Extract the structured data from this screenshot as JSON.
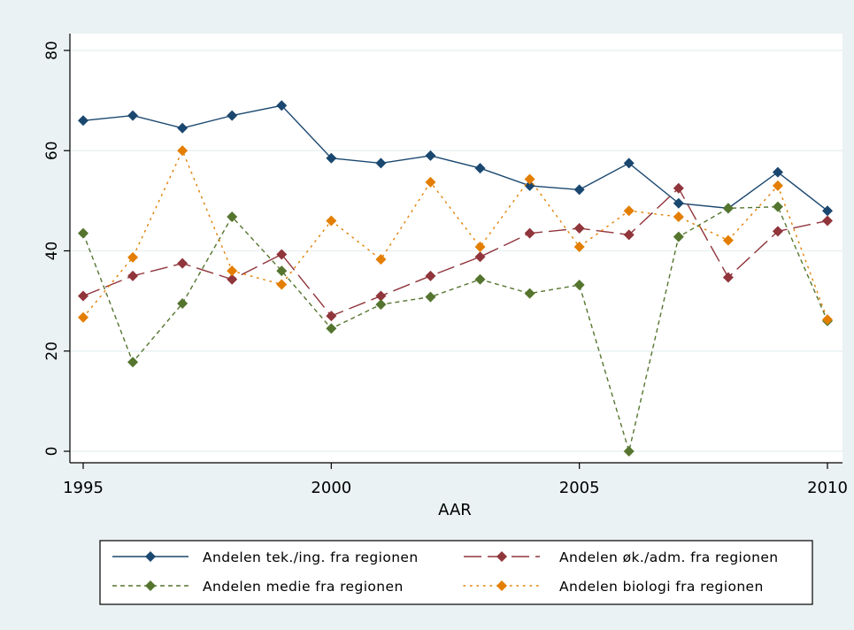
{
  "chart_data": {
    "type": "line",
    "xlabel": "AAR",
    "ylabel": "",
    "xlim": [
      1995,
      2010
    ],
    "ylim": [
      0,
      80
    ],
    "x_ticks": [
      1995,
      2000,
      2005,
      2010
    ],
    "y_ticks": [
      0,
      20,
      40,
      60,
      80
    ],
    "grid": true,
    "legend_position": "bottom",
    "x": [
      1995,
      1996,
      1997,
      1998,
      1999,
      2000,
      2001,
      2002,
      2003,
      2004,
      2005,
      2006,
      2007,
      2008,
      2009,
      2010
    ],
    "series": [
      {
        "name": "Andelen tek./ing. fra regionen",
        "color": "#1a476f",
        "line_style": "solid",
        "values": [
          66,
          67,
          64.5,
          67,
          69,
          58.5,
          57.5,
          59,
          56.5,
          53,
          52.2,
          57.5,
          49.5,
          48.5,
          55.7,
          48
        ]
      },
      {
        "name": "Andelen øk./adm. fra regionen",
        "color": "#90353b",
        "line_style": "longdash",
        "values": [
          31,
          35,
          37.5,
          34.3,
          39.3,
          27,
          31,
          35,
          38.8,
          43.5,
          44.5,
          43.2,
          52.5,
          34.7,
          43.9,
          46
        ]
      },
      {
        "name": "Andelen medie fra regionen",
        "color": "#55752f",
        "line_style": "dash",
        "values": [
          43.5,
          17.8,
          29.5,
          46.8,
          36,
          24.5,
          29.3,
          30.8,
          34.3,
          31.5,
          33.2,
          0,
          42.8,
          48.5,
          48.8,
          26
        ]
      },
      {
        "name": "Andelen biologi fra regionen",
        "color": "#e37e00",
        "line_style": "dot",
        "values": [
          26.7,
          38.7,
          60,
          36,
          33.3,
          46,
          38.3,
          53.7,
          40.8,
          54.3,
          40.8,
          48,
          46.8,
          42.1,
          53,
          26.3
        ]
      }
    ]
  },
  "legend": {
    "items": [
      "Andelen tek./ing. fra regionen",
      "Andelen øk./adm. fra regionen",
      "Andelen medie fra regionen",
      "Andelen biologi fra regionen"
    ]
  },
  "colors": {
    "background": "#eaf2f3",
    "plot_background": "#ffffff",
    "grid": "#eaf2f3"
  }
}
